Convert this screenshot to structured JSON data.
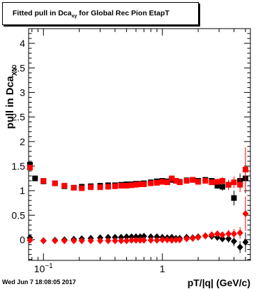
{
  "footer": "Wed Jun  7 18:08:05 2017",
  "chart_data": {
    "type": "scatter",
    "title_main": "Fitted pull in Dca",
    "title_sub": "xy",
    "title_rest": " for Global Rec Pion EtapT",
    "ylabel_main": "pull in Dca",
    "ylabel_sub": "XY",
    "xlabel": "pT/|q| (GeV/c)",
    "x_scale": "log",
    "xlim": [
      0.075,
      5.5
    ],
    "ylim": [
      -0.42,
      4.3
    ],
    "grid": false,
    "x_ticks": [
      {
        "value": 0.1,
        "main": "10",
        "exp": "−1"
      },
      {
        "value": 1,
        "main": "1",
        "exp": ""
      }
    ],
    "y_ticks": [
      "0",
      "0.5",
      "1",
      "1.5",
      "2",
      "2.5",
      "3",
      "3.5",
      "4"
    ],
    "y_tick_values": [
      0,
      0.5,
      1,
      1.5,
      2,
      2.5,
      3,
      3.5,
      4
    ],
    "colors": {
      "black_series": "#000000",
      "red_series": "#ff0000"
    },
    "series": [
      {
        "marker": "square",
        "color": "#000000",
        "x": [
          0.077,
          0.085,
          0.1,
          0.125,
          0.15,
          0.18,
          0.21,
          0.25,
          0.3,
          0.35,
          0.4,
          0.45,
          0.5,
          0.55,
          0.6,
          0.65,
          0.7,
          0.8,
          0.9,
          1.0,
          1.1,
          1.2,
          1.3,
          1.4,
          1.6,
          1.8,
          2.0,
          2.3,
          2.6,
          2.9,
          3.2,
          3.6,
          4.0,
          4.5,
          5.0
        ],
        "y": [
          1.53,
          1.25,
          1.19,
          1.15,
          1.09,
          1.06,
          1.08,
          1.09,
          1.1,
          1.11,
          1.11,
          1.12,
          1.13,
          1.13,
          1.14,
          1.14,
          1.15,
          1.17,
          1.19,
          1.2,
          1.19,
          1.22,
          1.2,
          1.18,
          1.21,
          1.22,
          1.2,
          1.22,
          1.2,
          1.1,
          1.08,
          1.12,
          0.85,
          1.2,
          1.25
        ],
        "err": [
          0.03,
          0.03,
          0.02,
          0.02,
          0.02,
          0.02,
          0.02,
          0.02,
          0.02,
          0.02,
          0.02,
          0.02,
          0.02,
          0.02,
          0.02,
          0.02,
          0.02,
          0.02,
          0.02,
          0.02,
          0.02,
          0.02,
          0.02,
          0.02,
          0.03,
          0.03,
          0.03,
          0.04,
          0.05,
          0.06,
          0.08,
          0.1,
          0.15,
          0.15,
          0.3
        ]
      },
      {
        "marker": "square",
        "color": "#ff0000",
        "x": [
          0.077,
          0.1,
          0.125,
          0.15,
          0.18,
          0.21,
          0.25,
          0.3,
          0.35,
          0.4,
          0.45,
          0.5,
          0.55,
          0.6,
          0.65,
          0.7,
          0.8,
          0.9,
          1.0,
          1.1,
          1.2,
          1.3,
          1.4,
          1.6,
          1.8,
          2.0,
          2.3,
          2.6,
          2.9,
          3.2,
          3.6,
          4.0,
          4.5,
          5.0
        ],
        "y": [
          1.47,
          1.2,
          1.15,
          1.1,
          1.06,
          1.05,
          1.07,
          1.07,
          1.08,
          1.09,
          1.1,
          1.1,
          1.11,
          1.12,
          1.13,
          1.13,
          1.15,
          1.16,
          1.18,
          1.17,
          1.25,
          1.2,
          1.17,
          1.2,
          1.22,
          1.18,
          1.2,
          1.17,
          1.18,
          1.2,
          1.12,
          1.17,
          1.12,
          1.43
        ],
        "err": [
          0.03,
          0.02,
          0.02,
          0.02,
          0.02,
          0.02,
          0.02,
          0.02,
          0.02,
          0.02,
          0.02,
          0.02,
          0.02,
          0.02,
          0.02,
          0.02,
          0.02,
          0.02,
          0.02,
          0.02,
          0.02,
          0.02,
          0.02,
          0.03,
          0.03,
          0.03,
          0.04,
          0.05,
          0.06,
          0.08,
          0.1,
          0.12,
          0.15,
          0.45
        ]
      },
      {
        "marker": "diamond",
        "color": "#000000",
        "x": [
          0.077,
          0.1,
          0.125,
          0.15,
          0.18,
          0.21,
          0.25,
          0.3,
          0.35,
          0.4,
          0.45,
          0.5,
          0.55,
          0.6,
          0.65,
          0.7,
          0.8,
          0.9,
          1.0,
          1.1,
          1.2,
          1.3,
          1.4,
          1.6,
          1.8,
          2.0,
          2.3,
          2.6,
          2.9,
          3.2,
          3.6,
          4.0,
          4.5,
          5.0
        ],
        "y": [
          0.04,
          -0.02,
          -0.01,
          0.0,
          0.01,
          0.02,
          0.03,
          0.04,
          0.05,
          0.05,
          0.05,
          0.06,
          0.06,
          0.06,
          0.06,
          0.07,
          0.06,
          0.06,
          0.05,
          0.04,
          0.05,
          0.03,
          0.03,
          0.05,
          0.04,
          0.06,
          0.08,
          0.07,
          0.05,
          0.02,
          0.02,
          -0.03,
          -0.15,
          -0.05
        ],
        "err": [
          0.02,
          0.01,
          0.01,
          0.01,
          0.01,
          0.01,
          0.01,
          0.01,
          0.01,
          0.01,
          0.01,
          0.01,
          0.01,
          0.01,
          0.01,
          0.01,
          0.01,
          0.01,
          0.01,
          0.01,
          0.01,
          0.01,
          0.01,
          0.02,
          0.02,
          0.02,
          0.03,
          0.04,
          0.05,
          0.06,
          0.08,
          0.1,
          0.12,
          0.2
        ]
      },
      {
        "marker": "diamond",
        "color": "#ff0000",
        "x": [
          0.077,
          0.1,
          0.125,
          0.15,
          0.18,
          0.21,
          0.25,
          0.3,
          0.35,
          0.4,
          0.45,
          0.5,
          0.55,
          0.6,
          0.65,
          0.7,
          0.8,
          0.9,
          1.0,
          1.1,
          1.2,
          1.3,
          1.4,
          1.6,
          1.8,
          2.0,
          2.3,
          2.6,
          2.9,
          3.2,
          3.6,
          4.0,
          4.5,
          5.0
        ],
        "y": [
          -0.01,
          -0.02,
          -0.02,
          -0.02,
          -0.02,
          -0.02,
          -0.02,
          -0.02,
          -0.02,
          -0.02,
          -0.02,
          -0.02,
          -0.01,
          -0.01,
          -0.01,
          -0.01,
          -0.01,
          -0.01,
          0.0,
          0.0,
          -0.01,
          0.0,
          0.0,
          0.02,
          0.03,
          0.05,
          0.08,
          0.1,
          0.12,
          0.1,
          0.12,
          0.12,
          0.14,
          0.53
        ],
        "err": [
          0.02,
          0.01,
          0.01,
          0.01,
          0.01,
          0.01,
          0.01,
          0.01,
          0.01,
          0.01,
          0.01,
          0.01,
          0.01,
          0.01,
          0.01,
          0.01,
          0.01,
          0.01,
          0.01,
          0.01,
          0.01,
          0.01,
          0.01,
          0.02,
          0.02,
          0.02,
          0.03,
          0.04,
          0.05,
          0.06,
          0.08,
          0.1,
          0.12,
          0.35
        ]
      }
    ]
  }
}
